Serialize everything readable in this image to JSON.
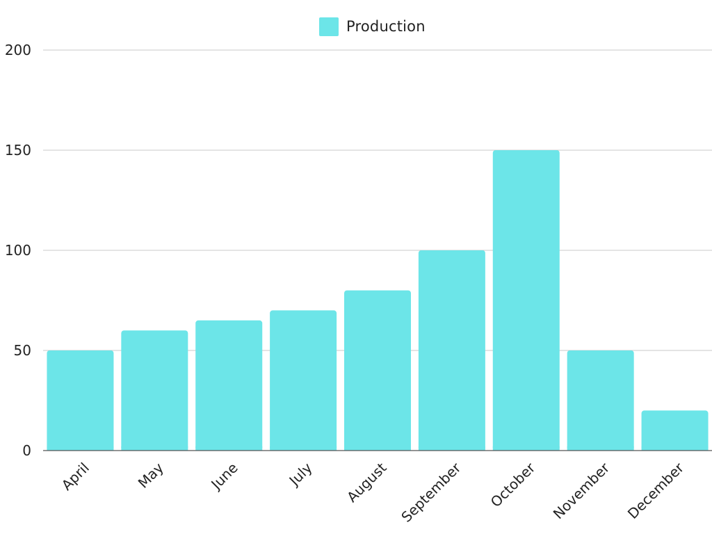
{
  "chart_data": {
    "type": "bar",
    "categories": [
      "April",
      "May",
      "June",
      "July",
      "August",
      "September",
      "October",
      "November",
      "December"
    ],
    "series": [
      {
        "name": "Production",
        "values": [
          50,
          60,
          65,
          70,
          80,
          100,
          150,
          50,
          20
        ]
      }
    ],
    "ylim": [
      0,
      200
    ],
    "yticks": [
      0,
      50,
      100,
      150,
      200
    ],
    "grid": true,
    "legend_position": "top-center",
    "colors": {
      "bar": "#6ce5e8",
      "grid": "#c8c8c8",
      "axis": "#555555",
      "text": "#222222"
    }
  }
}
